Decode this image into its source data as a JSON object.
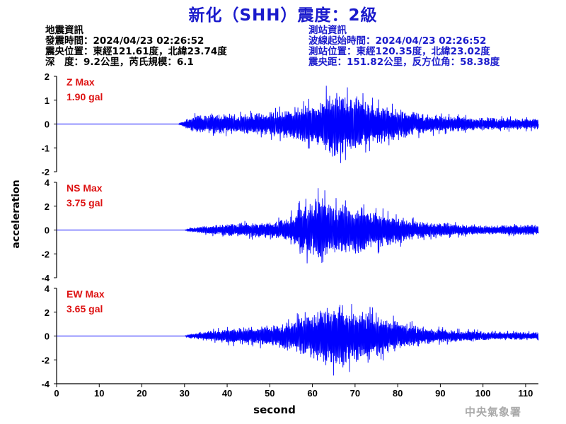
{
  "title": "新化（SHH）震度：2級",
  "quake_info": {
    "heading": "地震資訊",
    "time": "發震時間：2024/04/23 02:26:52",
    "epicenter": "震央位置：東經121.61度，北緯23.74度",
    "depth_magnitude": "深　度：9.2公里，芮氏規模：6.1"
  },
  "station_info": {
    "heading": "測站資訊",
    "wave_start": "波線起始時間：2024/04/23 02:26:52",
    "location": "測站位置：東經120.35度，北緯23.02度",
    "distance_azimuth": "震央距：151.82公里，反方位角：58.38度"
  },
  "agency": "中央氣象署",
  "chart_data": {
    "type": "line",
    "xlabel": "second",
    "ylabel": "acceleration",
    "xlim": [
      0,
      113
    ],
    "xticks": [
      0,
      10,
      20,
      30,
      40,
      50,
      60,
      70,
      80,
      90,
      100,
      110
    ],
    "line_color": "#0000ff",
    "panels": [
      {
        "component": "Z",
        "max_label": "Z Max",
        "max_value": "1.90 gal",
        "ylim": [
          -2,
          2
        ],
        "yticks": [
          -2,
          -1,
          0,
          1,
          2
        ],
        "envelope": [
          [
            0,
            0
          ],
          [
            28.5,
            0
          ],
          [
            30,
            0.2
          ],
          [
            32,
            0.45
          ],
          [
            35,
            0.5
          ],
          [
            40,
            0.55
          ],
          [
            45,
            0.55
          ],
          [
            50,
            0.65
          ],
          [
            54,
            0.8
          ],
          [
            58,
            1.0
          ],
          [
            62,
            1.2
          ],
          [
            64,
            1.9
          ],
          [
            67,
            1.6
          ],
          [
            70,
            1.45
          ],
          [
            73,
            1.2
          ],
          [
            76,
            1.0
          ],
          [
            80,
            0.85
          ],
          [
            85,
            0.6
          ],
          [
            90,
            0.45
          ],
          [
            100,
            0.35
          ],
          [
            113,
            0.3
          ]
        ]
      },
      {
        "component": "NS",
        "max_label": "NS Max",
        "max_value": "3.75 gal",
        "ylim": [
          -4,
          4
        ],
        "yticks": [
          -4,
          -2,
          0,
          2,
          4
        ],
        "envelope": [
          [
            0,
            0
          ],
          [
            30,
            0
          ],
          [
            31,
            0.2
          ],
          [
            35,
            0.45
          ],
          [
            40,
            0.65
          ],
          [
            45,
            0.8
          ],
          [
            50,
            0.9
          ],
          [
            54,
            1.2
          ],
          [
            57,
            2.5
          ],
          [
            60,
            3.0
          ],
          [
            62,
            3.75
          ],
          [
            65,
            3.0
          ],
          [
            68,
            2.9
          ],
          [
            71,
            2.6
          ],
          [
            75,
            2.0
          ],
          [
            80,
            1.5
          ],
          [
            85,
            0.9
          ],
          [
            90,
            0.75
          ],
          [
            100,
            0.5
          ],
          [
            113,
            0.6
          ]
        ]
      },
      {
        "component": "EW",
        "max_label": "EW Max",
        "max_value": "3.65 gal",
        "ylim": [
          -4,
          4
        ],
        "yticks": [
          -4,
          -2,
          0,
          2,
          4
        ],
        "envelope": [
          [
            0,
            0
          ],
          [
            30,
            0
          ],
          [
            31,
            0.2
          ],
          [
            35,
            0.5
          ],
          [
            40,
            0.8
          ],
          [
            45,
            1.0
          ],
          [
            50,
            1.1
          ],
          [
            55,
            1.6
          ],
          [
            58,
            2.3
          ],
          [
            60,
            2.4
          ],
          [
            63,
            3.3
          ],
          [
            67,
            3.65
          ],
          [
            70,
            2.9
          ],
          [
            73,
            2.7
          ],
          [
            77,
            2.0
          ],
          [
            82,
            1.4
          ],
          [
            87,
            0.9
          ],
          [
            95,
            0.6
          ],
          [
            105,
            0.45
          ],
          [
            113,
            0.4
          ]
        ]
      }
    ]
  }
}
